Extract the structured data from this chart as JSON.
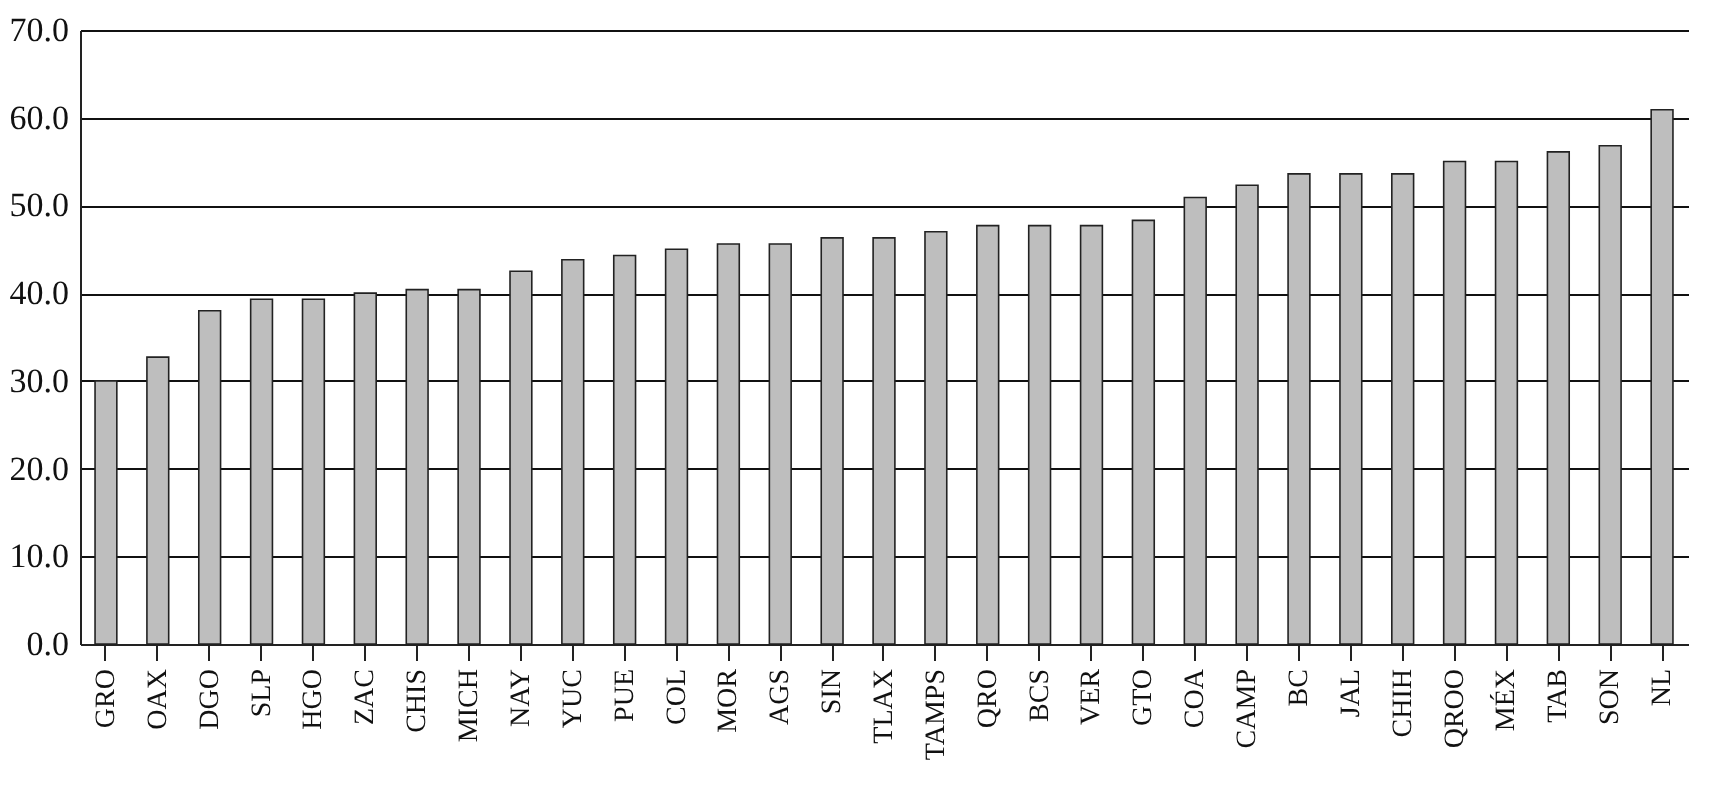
{
  "chart_data": {
    "type": "bar",
    "categories": [
      "GRO",
      "OAX",
      "DGO",
      "SLP",
      "HGO",
      "ZAC",
      "CHIS",
      "MICH",
      "NAY",
      "YUC",
      "PUE",
      "COL",
      "MOR",
      "AGS",
      "SIN",
      "TLAX",
      "TAMPS",
      "QRO",
      "BCS",
      "VER",
      "GTO",
      "COA",
      "CAMP",
      "BC",
      "JAL",
      "CHIH",
      "QROO",
      "MÉX",
      "TAB",
      "SON",
      "NL"
    ],
    "values": [
      30.0,
      32.7,
      38.0,
      39.3,
      39.3,
      40.0,
      40.4,
      40.4,
      42.5,
      43.8,
      44.3,
      45.0,
      45.6,
      45.6,
      46.3,
      46.3,
      47.0,
      47.7,
      47.7,
      47.7,
      48.3,
      50.9,
      52.3,
      53.6,
      53.6,
      53.6,
      55.0,
      55.0,
      56.1,
      56.8,
      60.9
    ],
    "color": "#bebebe",
    "ylim": [
      0,
      70
    ],
    "yticks": [
      {
        "value": 0,
        "label": "0.0"
      },
      {
        "value": 10,
        "label": "10.0"
      },
      {
        "value": 20,
        "label": "20.0"
      },
      {
        "value": 30,
        "label": "30.0"
      },
      {
        "value": 40,
        "label": "40.0"
      },
      {
        "value": 50,
        "label": "50.0"
      },
      {
        "value": 60,
        "label": "60.0"
      },
      {
        "value": 70,
        "label": "70.0"
      }
    ],
    "grid": "y"
  }
}
